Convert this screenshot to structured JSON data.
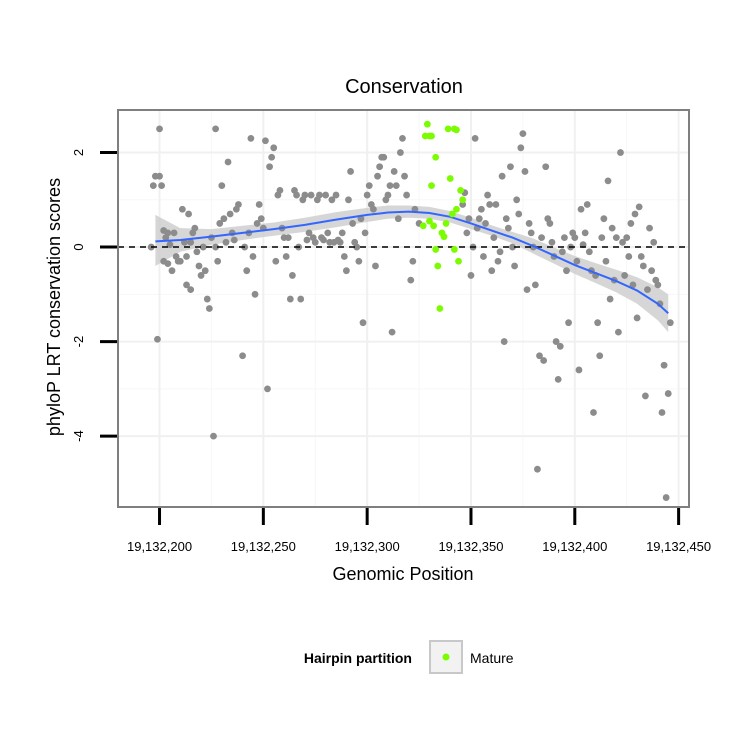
{
  "chart_data": {
    "type": "scatter",
    "title": "Conservation",
    "xlabel": "Genomic Position",
    "ylabel": "phyloP LRT conservation scores",
    "xlim": [
      19132180,
      19132455
    ],
    "ylim": [
      -5.5,
      2.9
    ],
    "x_ticks": [
      19132200,
      19132250,
      19132300,
      19132350,
      19132400,
      19132450
    ],
    "x_tick_labels": [
      "19,132,200",
      "19,132,250",
      "19,132,300",
      "19,132,350",
      "19,132,400",
      "19,132,450"
    ],
    "y_ticks": [
      -4,
      -2,
      0,
      2
    ],
    "y_tick_labels": [
      "-4",
      "-2",
      "0",
      "2"
    ],
    "grid": true,
    "reference_line": {
      "y": 0,
      "style": "dashed"
    },
    "legend": {
      "title": "Hairpin partition",
      "placement": "bottom",
      "entries": [
        {
          "label": "Mature",
          "color": "#7cfc00"
        }
      ]
    },
    "colors": {
      "other_points": "#8c8c8c",
      "mature_points": "#7cfc00",
      "smooth_line": "#3366ff",
      "confidence_band": "#cccccc"
    },
    "smooth": {
      "x": [
        19132198,
        19132210,
        19132225,
        19132240,
        19132255,
        19132270,
        19132285,
        19132300,
        19132310,
        19132320,
        19132330,
        19132340,
        19132350,
        19132360,
        19132370,
        19132380,
        19132390,
        19132400,
        19132410,
        19132420,
        19132430,
        19132440,
        19132445
      ],
      "y": [
        0.12,
        0.15,
        0.22,
        0.3,
        0.38,
        0.47,
        0.58,
        0.68,
        0.73,
        0.75,
        0.72,
        0.64,
        0.5,
        0.35,
        0.2,
        0.02,
        -0.18,
        -0.38,
        -0.55,
        -0.72,
        -0.92,
        -1.2,
        -1.4
      ],
      "lower": [
        -0.4,
        -0.1,
        0.05,
        0.15,
        0.24,
        0.32,
        0.42,
        0.53,
        0.6,
        0.62,
        0.6,
        0.52,
        0.38,
        0.24,
        0.08,
        -0.14,
        -0.35,
        -0.57,
        -0.76,
        -0.96,
        -1.2,
        -1.55,
        -1.8
      ],
      "upper": [
        0.68,
        0.4,
        0.38,
        0.45,
        0.52,
        0.62,
        0.74,
        0.83,
        0.88,
        0.88,
        0.85,
        0.76,
        0.62,
        0.46,
        0.32,
        0.18,
        -0.01,
        -0.19,
        -0.34,
        -0.48,
        -0.64,
        -0.85,
        -1.0
      ]
    },
    "series": [
      {
        "name": "Mature",
        "points": [
          [
            19132329,
            2.6
          ],
          [
            19132330,
            2.35
          ],
          [
            19132328,
            2.35
          ],
          [
            19132331,
            2.35
          ],
          [
            19132339,
            2.5
          ],
          [
            19132342,
            2.5
          ],
          [
            19132343,
            2.48
          ],
          [
            19132333,
            1.9
          ],
          [
            19132331,
            1.3
          ],
          [
            19132340,
            1.45
          ],
          [
            19132345,
            1.2
          ],
          [
            19132346,
            1.0
          ],
          [
            19132343,
            0.8
          ],
          [
            19132327,
            0.45
          ],
          [
            19132332,
            0.45
          ],
          [
            19132336,
            0.3
          ],
          [
            19132338,
            0.5
          ],
          [
            19132341,
            0.7
          ],
          [
            19132337,
            0.22
          ],
          [
            19132330,
            0.55
          ],
          [
            19132333,
            -0.05
          ],
          [
            19132342,
            -0.05
          ],
          [
            19132334,
            -0.4
          ],
          [
            19132344,
            -0.3
          ],
          [
            19132335,
            -1.3
          ]
        ]
      },
      {
        "points": [
          [
            19132197,
            1.3
          ],
          [
            19132198,
            1.5
          ],
          [
            19132200,
            1.5
          ],
          [
            19132200,
            2.5
          ],
          [
            19132201,
            1.3
          ],
          [
            19132196,
            0.0
          ],
          [
            19132199,
            -1.95
          ],
          [
            19132202,
            0.35
          ],
          [
            19132203,
            0.2
          ],
          [
            19132204,
            0.3
          ],
          [
            19132202,
            -0.3
          ],
          [
            19132204,
            -0.35
          ],
          [
            19132205,
            0.05
          ],
          [
            19132206,
            -0.5
          ],
          [
            19132207,
            0.3
          ],
          [
            19132208,
            -0.2
          ],
          [
            19132209,
            -0.3
          ],
          [
            19132210,
            -0.3
          ],
          [
            19132211,
            0.8
          ],
          [
            19132212,
            0.1
          ],
          [
            19132213,
            -0.2
          ],
          [
            19132214,
            0.7
          ],
          [
            19132215,
            0.1
          ],
          [
            19132213,
            -0.8
          ],
          [
            19132215,
            -0.9
          ],
          [
            19132216,
            0.3
          ],
          [
            19132217,
            0.4
          ],
          [
            19132218,
            -0.1
          ],
          [
            19132219,
            -0.4
          ],
          [
            19132220,
            -0.6
          ],
          [
            19132221,
            0.0
          ],
          [
            19132222,
            -0.5
          ],
          [
            19132223,
            -1.1
          ],
          [
            19132224,
            -1.3
          ],
          [
            19132226,
            -4.0
          ],
          [
            19132227,
            2.5
          ],
          [
            19132225,
            0.2
          ],
          [
            19132227,
            0.0
          ],
          [
            19132228,
            -0.3
          ],
          [
            19132229,
            0.5
          ],
          [
            19132230,
            1.3
          ],
          [
            19132231,
            0.6
          ],
          [
            19132232,
            0.1
          ],
          [
            19132233,
            1.8
          ],
          [
            19132234,
            0.7
          ],
          [
            19132235,
            0.3
          ],
          [
            19132236,
            0.15
          ],
          [
            19132237,
            0.8
          ],
          [
            19132238,
            0.9
          ],
          [
            19132240,
            -2.3
          ],
          [
            19132241,
            0.0
          ],
          [
            19132242,
            -0.5
          ],
          [
            19132243,
            0.3
          ],
          [
            19132244,
            2.3
          ],
          [
            19132245,
            -0.2
          ],
          [
            19132246,
            -1.0
          ],
          [
            19132247,
            0.5
          ],
          [
            19132248,
            0.9
          ],
          [
            19132249,
            0.6
          ],
          [
            19132250,
            0.4
          ],
          [
            19132251,
            2.25
          ],
          [
            19132252,
            -3.0
          ],
          [
            19132253,
            1.7
          ],
          [
            19132254,
            1.9
          ],
          [
            19132255,
            2.1
          ],
          [
            19132256,
            -0.3
          ],
          [
            19132257,
            1.1
          ],
          [
            19132258,
            1.2
          ],
          [
            19132259,
            0.4
          ],
          [
            19132260,
            0.2
          ],
          [
            19132261,
            -0.2
          ],
          [
            19132262,
            0.2
          ],
          [
            19132263,
            -1.1
          ],
          [
            19132264,
            -0.6
          ],
          [
            19132265,
            1.2
          ],
          [
            19132266,
            1.1
          ],
          [
            19132267,
            0.0
          ],
          [
            19132268,
            -1.1
          ],
          [
            19132269,
            1.0
          ],
          [
            19132270,
            1.1
          ],
          [
            19132271,
            0.15
          ],
          [
            19132272,
            0.3
          ],
          [
            19132273,
            1.1
          ],
          [
            19132274,
            0.2
          ],
          [
            19132275,
            0.1
          ],
          [
            19132276,
            1.0
          ],
          [
            19132277,
            1.1
          ],
          [
            19132278,
            0.2
          ],
          [
            19132279,
            0.15
          ],
          [
            19132280,
            1.1
          ],
          [
            19132281,
            0.3
          ],
          [
            19132282,
            0.1
          ],
          [
            19132283,
            1.0
          ],
          [
            19132284,
            0.1
          ],
          [
            19132285,
            1.1
          ],
          [
            19132286,
            0.15
          ],
          [
            19132287,
            0.1
          ],
          [
            19132288,
            0.3
          ],
          [
            19132289,
            -0.2
          ],
          [
            19132290,
            -0.5
          ],
          [
            19132291,
            1.0
          ],
          [
            19132292,
            1.6
          ],
          [
            19132293,
            0.5
          ],
          [
            19132294,
            0.1
          ],
          [
            19132295,
            0.0
          ],
          [
            19132296,
            -0.3
          ],
          [
            19132297,
            0.6
          ],
          [
            19132298,
            -1.6
          ],
          [
            19132299,
            0.3
          ],
          [
            19132300,
            1.1
          ],
          [
            19132301,
            1.3
          ],
          [
            19132302,
            0.9
          ],
          [
            19132303,
            0.8
          ],
          [
            19132304,
            -0.4
          ],
          [
            19132305,
            1.5
          ],
          [
            19132306,
            1.7
          ],
          [
            19132307,
            1.9
          ],
          [
            19132308,
            1.9
          ],
          [
            19132309,
            1.0
          ],
          [
            19132310,
            1.1
          ],
          [
            19132311,
            1.3
          ],
          [
            19132312,
            -1.8
          ],
          [
            19132313,
            1.6
          ],
          [
            19132314,
            1.3
          ],
          [
            19132315,
            0.6
          ],
          [
            19132316,
            2.0
          ],
          [
            19132317,
            2.3
          ],
          [
            19132318,
            1.5
          ],
          [
            19132319,
            1.1
          ],
          [
            19132321,
            -0.7
          ],
          [
            19132322,
            -0.3
          ],
          [
            19132323,
            0.8
          ],
          [
            19132325,
            0.5
          ],
          [
            19132346,
            0.9
          ],
          [
            19132347,
            1.15
          ],
          [
            19132348,
            0.3
          ],
          [
            19132349,
            0.6
          ],
          [
            19132350,
            -0.6
          ],
          [
            19132351,
            0.0
          ],
          [
            19132352,
            2.3
          ],
          [
            19132353,
            0.4
          ],
          [
            19132354,
            0.6
          ],
          [
            19132355,
            0.8
          ],
          [
            19132356,
            -0.2
          ],
          [
            19132357,
            0.5
          ],
          [
            19132358,
            1.1
          ],
          [
            19132359,
            0.9
          ],
          [
            19132360,
            -0.5
          ],
          [
            19132361,
            0.2
          ],
          [
            19132362,
            0.9
          ],
          [
            19132363,
            -0.3
          ],
          [
            19132364,
            -0.1
          ],
          [
            19132365,
            1.5
          ],
          [
            19132366,
            -2.0
          ],
          [
            19132367,
            0.6
          ],
          [
            19132368,
            0.4
          ],
          [
            19132369,
            1.7
          ],
          [
            19132370,
            0.0
          ],
          [
            19132371,
            -0.4
          ],
          [
            19132372,
            1.0
          ],
          [
            19132373,
            0.7
          ],
          [
            19132374,
            2.1
          ],
          [
            19132375,
            2.4
          ],
          [
            19132376,
            1.6
          ],
          [
            19132377,
            -0.9
          ],
          [
            19132378,
            0.5
          ],
          [
            19132379,
            0.3
          ],
          [
            19132380,
            0.0
          ],
          [
            19132381,
            -0.8
          ],
          [
            19132382,
            -4.7
          ],
          [
            19132383,
            -2.3
          ],
          [
            19132384,
            0.2
          ],
          [
            19132385,
            -2.4
          ],
          [
            19132386,
            1.7
          ],
          [
            19132387,
            0.6
          ],
          [
            19132388,
            0.5
          ],
          [
            19132389,
            0.1
          ],
          [
            19132390,
            -0.2
          ],
          [
            19132391,
            -2.0
          ],
          [
            19132392,
            -2.8
          ],
          [
            19132393,
            -2.1
          ],
          [
            19132394,
            -0.1
          ],
          [
            19132395,
            0.2
          ],
          [
            19132396,
            -0.5
          ],
          [
            19132397,
            -1.6
          ],
          [
            19132398,
            0.0
          ],
          [
            19132399,
            0.3
          ],
          [
            19132400,
            0.2
          ],
          [
            19132401,
            -0.3
          ],
          [
            19132402,
            -2.6
          ],
          [
            19132403,
            0.8
          ],
          [
            19132404,
            0.05
          ],
          [
            19132405,
            0.3
          ],
          [
            19132406,
            0.9
          ],
          [
            19132407,
            -0.1
          ],
          [
            19132408,
            -0.5
          ],
          [
            19132409,
            -3.5
          ],
          [
            19132410,
            -0.6
          ],
          [
            19132411,
            -1.6
          ],
          [
            19132412,
            -2.3
          ],
          [
            19132413,
            0.2
          ],
          [
            19132414,
            0.6
          ],
          [
            19132415,
            -0.3
          ],
          [
            19132416,
            1.4
          ],
          [
            19132417,
            -1.1
          ],
          [
            19132418,
            0.4
          ],
          [
            19132419,
            -0.7
          ],
          [
            19132420,
            0.2
          ],
          [
            19132421,
            -1.8
          ],
          [
            19132422,
            2.0
          ],
          [
            19132423,
            0.1
          ],
          [
            19132424,
            -0.6
          ],
          [
            19132425,
            0.2
          ],
          [
            19132426,
            -0.2
          ],
          [
            19132427,
            0.5
          ],
          [
            19132428,
            -0.8
          ],
          [
            19132429,
            0.7
          ],
          [
            19132430,
            -1.5
          ],
          [
            19132431,
            0.85
          ],
          [
            19132432,
            -0.2
          ],
          [
            19132433,
            -0.4
          ],
          [
            19132434,
            -3.15
          ],
          [
            19132435,
            -0.9
          ],
          [
            19132436,
            0.4
          ],
          [
            19132437,
            -0.5
          ],
          [
            19132438,
            0.1
          ],
          [
            19132439,
            -0.7
          ],
          [
            19132440,
            -0.8
          ],
          [
            19132441,
            -1.2
          ],
          [
            19132442,
            -3.5
          ],
          [
            19132443,
            -2.5
          ],
          [
            19132444,
            -5.3
          ],
          [
            19132445,
            -3.1
          ],
          [
            19132446,
            -1.6
          ]
        ]
      }
    ]
  }
}
